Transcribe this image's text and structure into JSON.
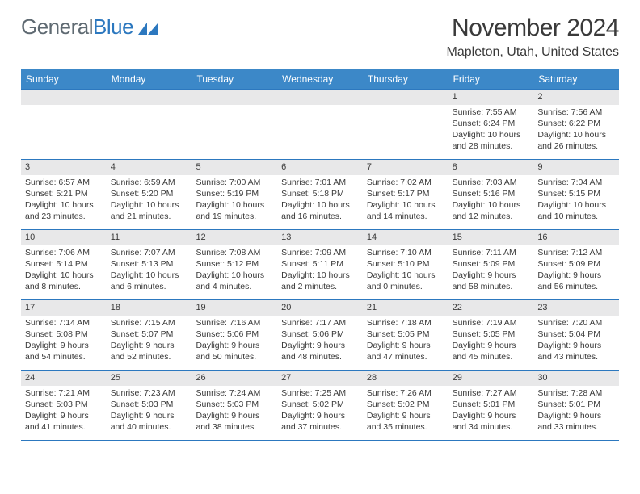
{
  "logo": {
    "text1": "General",
    "text2": "Blue"
  },
  "title": "November 2024",
  "location": "Mapleton, Utah, United States",
  "colors": {
    "accent": "#3c88c8",
    "rule": "#2c78bf",
    "daynum_bg": "#e8e8e9",
    "text": "#3a3a3a"
  },
  "dow": [
    "Sunday",
    "Monday",
    "Tuesday",
    "Wednesday",
    "Thursday",
    "Friday",
    "Saturday"
  ],
  "weeks": [
    [
      null,
      null,
      null,
      null,
      null,
      {
        "n": "1",
        "sr": "7:55 AM",
        "ss": "6:24 PM",
        "dl": "10 hours and 28 minutes."
      },
      {
        "n": "2",
        "sr": "7:56 AM",
        "ss": "6:22 PM",
        "dl": "10 hours and 26 minutes."
      }
    ],
    [
      {
        "n": "3",
        "sr": "6:57 AM",
        "ss": "5:21 PM",
        "dl": "10 hours and 23 minutes."
      },
      {
        "n": "4",
        "sr": "6:59 AM",
        "ss": "5:20 PM",
        "dl": "10 hours and 21 minutes."
      },
      {
        "n": "5",
        "sr": "7:00 AM",
        "ss": "5:19 PM",
        "dl": "10 hours and 19 minutes."
      },
      {
        "n": "6",
        "sr": "7:01 AM",
        "ss": "5:18 PM",
        "dl": "10 hours and 16 minutes."
      },
      {
        "n": "7",
        "sr": "7:02 AM",
        "ss": "5:17 PM",
        "dl": "10 hours and 14 minutes."
      },
      {
        "n": "8",
        "sr": "7:03 AM",
        "ss": "5:16 PM",
        "dl": "10 hours and 12 minutes."
      },
      {
        "n": "9",
        "sr": "7:04 AM",
        "ss": "5:15 PM",
        "dl": "10 hours and 10 minutes."
      }
    ],
    [
      {
        "n": "10",
        "sr": "7:06 AM",
        "ss": "5:14 PM",
        "dl": "10 hours and 8 minutes."
      },
      {
        "n": "11",
        "sr": "7:07 AM",
        "ss": "5:13 PM",
        "dl": "10 hours and 6 minutes."
      },
      {
        "n": "12",
        "sr": "7:08 AM",
        "ss": "5:12 PM",
        "dl": "10 hours and 4 minutes."
      },
      {
        "n": "13",
        "sr": "7:09 AM",
        "ss": "5:11 PM",
        "dl": "10 hours and 2 minutes."
      },
      {
        "n": "14",
        "sr": "7:10 AM",
        "ss": "5:10 PM",
        "dl": "10 hours and 0 minutes."
      },
      {
        "n": "15",
        "sr": "7:11 AM",
        "ss": "5:09 PM",
        "dl": "9 hours and 58 minutes."
      },
      {
        "n": "16",
        "sr": "7:12 AM",
        "ss": "5:09 PM",
        "dl": "9 hours and 56 minutes."
      }
    ],
    [
      {
        "n": "17",
        "sr": "7:14 AM",
        "ss": "5:08 PM",
        "dl": "9 hours and 54 minutes."
      },
      {
        "n": "18",
        "sr": "7:15 AM",
        "ss": "5:07 PM",
        "dl": "9 hours and 52 minutes."
      },
      {
        "n": "19",
        "sr": "7:16 AM",
        "ss": "5:06 PM",
        "dl": "9 hours and 50 minutes."
      },
      {
        "n": "20",
        "sr": "7:17 AM",
        "ss": "5:06 PM",
        "dl": "9 hours and 48 minutes."
      },
      {
        "n": "21",
        "sr": "7:18 AM",
        "ss": "5:05 PM",
        "dl": "9 hours and 47 minutes."
      },
      {
        "n": "22",
        "sr": "7:19 AM",
        "ss": "5:05 PM",
        "dl": "9 hours and 45 minutes."
      },
      {
        "n": "23",
        "sr": "7:20 AM",
        "ss": "5:04 PM",
        "dl": "9 hours and 43 minutes."
      }
    ],
    [
      {
        "n": "24",
        "sr": "7:21 AM",
        "ss": "5:03 PM",
        "dl": "9 hours and 41 minutes."
      },
      {
        "n": "25",
        "sr": "7:23 AM",
        "ss": "5:03 PM",
        "dl": "9 hours and 40 minutes."
      },
      {
        "n": "26",
        "sr": "7:24 AM",
        "ss": "5:03 PM",
        "dl": "9 hours and 38 minutes."
      },
      {
        "n": "27",
        "sr": "7:25 AM",
        "ss": "5:02 PM",
        "dl": "9 hours and 37 minutes."
      },
      {
        "n": "28",
        "sr": "7:26 AM",
        "ss": "5:02 PM",
        "dl": "9 hours and 35 minutes."
      },
      {
        "n": "29",
        "sr": "7:27 AM",
        "ss": "5:01 PM",
        "dl": "9 hours and 34 minutes."
      },
      {
        "n": "30",
        "sr": "7:28 AM",
        "ss": "5:01 PM",
        "dl": "9 hours and 33 minutes."
      }
    ]
  ],
  "labels": {
    "sunrise": "Sunrise:",
    "sunset": "Sunset:",
    "daylight": "Daylight:"
  }
}
